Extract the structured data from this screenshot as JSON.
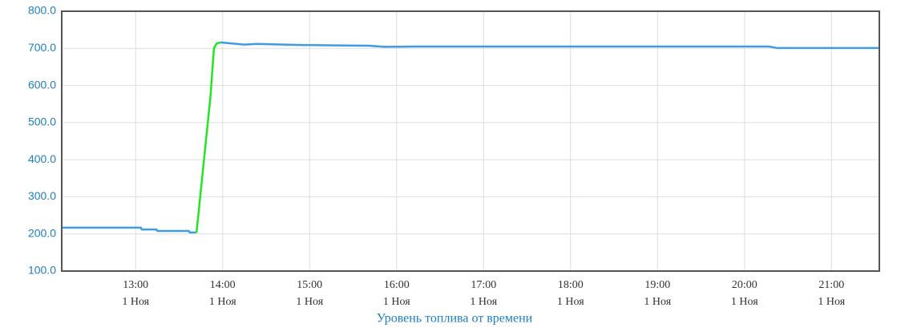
{
  "chart_data": {
    "type": "line",
    "xlabel": "Уровень топлива от времени",
    "xlim": [
      12.15,
      21.55
    ],
    "xticks": [
      {
        "value": 13,
        "label": "13:00"
      },
      {
        "value": 14,
        "label": "14:00"
      },
      {
        "value": 15,
        "label": "15:00"
      },
      {
        "value": 16,
        "label": "16:00"
      },
      {
        "value": 17,
        "label": "17:00"
      },
      {
        "value": 18,
        "label": "18:00"
      },
      {
        "value": 19,
        "label": "19:00"
      },
      {
        "value": 20,
        "label": "20:00"
      },
      {
        "value": 21,
        "label": "21:00"
      }
    ],
    "xtick_dates": [
      "1 Ноя",
      "1 Ноя",
      "1 Ноя",
      "1 Ноя",
      "1 Ноя",
      "1 Ноя",
      "1 Ноя",
      "1 Ноя",
      "1 Ноя"
    ],
    "ylim": [
      100,
      800
    ],
    "yticks": [
      {
        "value": 100,
        "label": "100.0"
      },
      {
        "value": 200,
        "label": "200.0"
      },
      {
        "value": 300,
        "label": "300.0"
      },
      {
        "value": 400,
        "label": "400.0"
      },
      {
        "value": 500,
        "label": "500.0"
      },
      {
        "value": 600,
        "label": "600.0"
      },
      {
        "value": 700,
        "label": "700.0"
      },
      {
        "value": 800,
        "label": "800.0"
      }
    ],
    "grid": true,
    "series": [
      {
        "color": "#3e9be6",
        "x": [
          12.15,
          13.06,
          13.07,
          13.24,
          13.25,
          13.61,
          13.62,
          13.7,
          13.8,
          13.975,
          14.11,
          14.25,
          14.39,
          14.9,
          15.31,
          15.68,
          15.86,
          16.23,
          20.28,
          20.37,
          21.55
        ],
        "values": [
          217,
          217,
          212,
          212,
          208,
          208,
          204,
          204,
          null,
          716,
          713,
          710,
          712,
          709,
          708,
          707,
          704,
          705,
          705,
          701,
          701
        ]
      },
      {
        "color": "#22e622",
        "x": [
          13.7,
          13.86,
          13.9,
          13.93,
          13.975
        ],
        "values": [
          204,
          570,
          700,
          713,
          716
        ]
      }
    ]
  }
}
